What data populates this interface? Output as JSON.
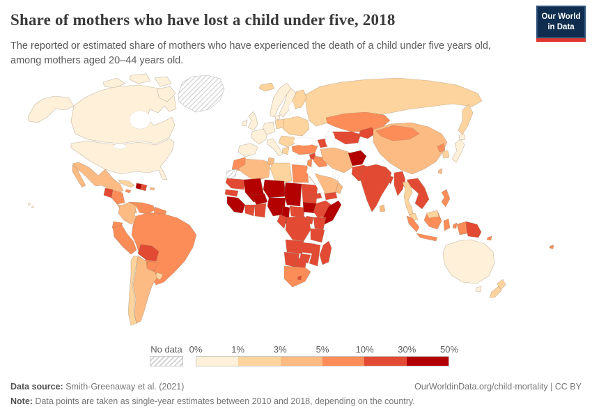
{
  "header": {
    "title": "Share of mothers who have lost a child under five, 2018",
    "subtitle": "The reported or estimated share of mothers who have experienced the death of a child under five years old, among mothers aged 20–44 years old."
  },
  "logo": {
    "line1": "Our World",
    "line2": "in Data",
    "bg": "#0F2D4E",
    "accent": "#E0362D"
  },
  "legend": {
    "no_data_label": "No data",
    "ticks": [
      "0%",
      "1%",
      "3%",
      "5%",
      "10%",
      "30%",
      "50%"
    ],
    "colors": [
      "#FEF0D9",
      "#FDD49E",
      "#FDBB84",
      "#FC8D59",
      "#E34A33",
      "#B30000"
    ]
  },
  "footer": {
    "source_label": "Data source:",
    "source_text": " Smith-Greenaway et al. (2021)",
    "link": "OurWorldinData.org/child-mortality | CC BY",
    "note_label": "Note:",
    "note_text": " Data points are taken as single-year estimates between 2010 and 2018, depending on the country."
  },
  "chart_data": {
    "type": "choropleth",
    "title": "Share of mothers who have lost a child under five",
    "year": "2018",
    "unit": "%",
    "scale": {
      "type": "threshold",
      "tick_values": [
        0,
        1,
        3,
        5,
        10,
        30,
        50
      ],
      "colors": [
        "#FEF0D9",
        "#FDD49E",
        "#FDBB84",
        "#FC8D59",
        "#E34A33",
        "#B30000"
      ],
      "no_data": "hatched"
    },
    "bucket_ranges": [
      "0-1%",
      "1-3%",
      "3-5%",
      "5-10%",
      "10-30%",
      "30-50%"
    ],
    "regions": [
      {
        "id": "canada",
        "name": "Canada",
        "bucket": 0
      },
      {
        "id": "usa",
        "name": "United States",
        "bucket": 0
      },
      {
        "id": "greenland",
        "name": "Greenland",
        "bucket": "no-data"
      },
      {
        "id": "mexico",
        "name": "Mexico",
        "bucket": 2
      },
      {
        "id": "guatemala",
        "name": "Guatemala",
        "bucket": 4
      },
      {
        "id": "honduras-nicaragua",
        "name": "Honduras & Nicaragua",
        "bucket": 3
      },
      {
        "id": "costa-rica-panama",
        "name": "Costa Rica & Panama",
        "bucket": 2
      },
      {
        "id": "cuba",
        "name": "Cuba",
        "bucket": 1
      },
      {
        "id": "jamaica",
        "name": "Jamaica",
        "bucket": 3
      },
      {
        "id": "haiti",
        "name": "Haiti",
        "bucket": 5
      },
      {
        "id": "dominican-republic",
        "name": "Dominican Republic",
        "bucket": 4
      },
      {
        "id": "puerto-rico",
        "name": "Puerto Rico",
        "bucket": 2
      },
      {
        "id": "colombia",
        "name": "Colombia",
        "bucket": 2
      },
      {
        "id": "venezuela",
        "name": "Venezuela",
        "bucket": 3
      },
      {
        "id": "guyanas",
        "name": "Guyana, Suriname & French Guiana",
        "bucket": 3
      },
      {
        "id": "ecuador",
        "name": "Ecuador",
        "bucket": 3
      },
      {
        "id": "peru",
        "name": "Peru",
        "bucket": 3
      },
      {
        "id": "brazil",
        "name": "Brazil",
        "bucket": 3
      },
      {
        "id": "bolivia",
        "name": "Bolivia",
        "bucket": 4
      },
      {
        "id": "paraguay",
        "name": "Paraguay",
        "bucket": 3
      },
      {
        "id": "uruguay",
        "name": "Uruguay",
        "bucket": 1
      },
      {
        "id": "argentina",
        "name": "Argentina",
        "bucket": 2
      },
      {
        "id": "chile",
        "name": "Chile",
        "bucket": 1
      },
      {
        "id": "iceland",
        "name": "Iceland",
        "bucket": 1
      },
      {
        "id": "norway",
        "name": "Norway",
        "bucket": 0
      },
      {
        "id": "sweden",
        "name": "Sweden",
        "bucket": 0
      },
      {
        "id": "finland",
        "name": "Finland",
        "bucket": 1
      },
      {
        "id": "denmark",
        "name": "Denmark",
        "bucket": 0
      },
      {
        "id": "uk",
        "name": "United Kingdom",
        "bucket": 0
      },
      {
        "id": "ireland",
        "name": "Ireland",
        "bucket": 0
      },
      {
        "id": "france",
        "name": "France",
        "bucket": 0
      },
      {
        "id": "iberia",
        "name": "Spain & Portugal",
        "bucket": 0
      },
      {
        "id": "germany",
        "name": "Germany",
        "bucket": 0
      },
      {
        "id": "italy",
        "name": "Italy",
        "bucket": 0
      },
      {
        "id": "poland",
        "name": "Poland",
        "bucket": 1
      },
      {
        "id": "east-europe",
        "name": "Eastern Europe",
        "bucket": 1
      },
      {
        "id": "balkans",
        "name": "Balkans & Romania",
        "bucket": 1
      },
      {
        "id": "greece",
        "name": "Greece",
        "bucket": 1
      },
      {
        "id": "russia",
        "name": "Russia",
        "bucket": 1
      },
      {
        "id": "turkey",
        "name": "Turkey",
        "bucket": 3
      },
      {
        "id": "caucasus",
        "name": "Caucasus",
        "bucket": 4
      },
      {
        "id": "syria",
        "name": "Syria",
        "bucket": 4
      },
      {
        "id": "iraq",
        "name": "Iraq",
        "bucket": 3
      },
      {
        "id": "jordan-israel",
        "name": "Jordan & Israel",
        "bucket": 3
      },
      {
        "id": "iran",
        "name": "Iran",
        "bucket": 2
      },
      {
        "id": "afghanistan",
        "name": "Afghanistan",
        "bucket": 5
      },
      {
        "id": "pakistan",
        "name": "Pakistan",
        "bucket": 4
      },
      {
        "id": "saudi-arabia",
        "name": "Saudi Arabia",
        "bucket": 2
      },
      {
        "id": "yemen",
        "name": "Yemen",
        "bucket": 4
      },
      {
        "id": "oman",
        "name": "Oman & UAE",
        "bucket": 2
      },
      {
        "id": "kazakhstan",
        "name": "Kazakhstan",
        "bucket": 3
      },
      {
        "id": "uzbekistan-turkmenistan",
        "name": "Uzbekistan & Turkmenistan",
        "bucket": 4
      },
      {
        "id": "kyrgyzstan-tajikistan",
        "name": "Kyrgyzstan & Tajikistan",
        "bucket": 4
      },
      {
        "id": "china",
        "name": "China",
        "bucket": 2
      },
      {
        "id": "mongolia",
        "name": "Mongolia",
        "bucket": 3
      },
      {
        "id": "north-korea",
        "name": "North Korea",
        "bucket": 3
      },
      {
        "id": "south-korea",
        "name": "South Korea",
        "bucket": 1
      },
      {
        "id": "japan",
        "name": "Japan",
        "bucket": 0
      },
      {
        "id": "taiwan",
        "name": "Taiwan",
        "bucket": 2
      },
      {
        "id": "india",
        "name": "India",
        "bucket": 4
      },
      {
        "id": "bangladesh",
        "name": "Bangladesh",
        "bucket": 4
      },
      {
        "id": "sri-lanka",
        "name": "Sri Lanka",
        "bucket": 2
      },
      {
        "id": "myanmar",
        "name": "Myanmar",
        "bucket": 4
      },
      {
        "id": "thailand",
        "name": "Thailand",
        "bucket": 1
      },
      {
        "id": "laos-vietnam-cambodia",
        "name": "Laos, Vietnam & Cambodia",
        "bucket": 4
      },
      {
        "id": "malaysia",
        "name": "Malaysia",
        "bucket": 1
      },
      {
        "id": "sumatra",
        "name": "Indonesia (Sumatra)",
        "bucket": 3
      },
      {
        "id": "java",
        "name": "Indonesia (Java)",
        "bucket": 3
      },
      {
        "id": "borneo",
        "name": "Indonesia (Kalimantan)",
        "bucket": 3
      },
      {
        "id": "sulawesi",
        "name": "Indonesia (Sulawesi)",
        "bucket": 3
      },
      {
        "id": "moluccas",
        "name": "Indonesia (Moluccas)",
        "bucket": 3
      },
      {
        "id": "philippines",
        "name": "Philippines",
        "bucket": 3
      },
      {
        "id": "west-papua",
        "name": "Indonesia (Papua)",
        "bucket": 3
      },
      {
        "id": "papua-new-guinea",
        "name": "Papua New Guinea",
        "bucket": 4
      },
      {
        "id": "solomon-islands",
        "name": "Solomon Islands",
        "bucket": 3
      },
      {
        "id": "fiji",
        "name": "Fiji",
        "bucket": 3
      },
      {
        "id": "australia",
        "name": "Australia",
        "bucket": 0
      },
      {
        "id": "new-zealand",
        "name": "New Zealand",
        "bucket": 1
      },
      {
        "id": "morocco",
        "name": "Morocco",
        "bucket": 3
      },
      {
        "id": "western-sahara",
        "name": "Western Sahara",
        "bucket": "no-data"
      },
      {
        "id": "algeria",
        "name": "Algeria",
        "bucket": 2
      },
      {
        "id": "tunisia",
        "name": "Tunisia",
        "bucket": 2
      },
      {
        "id": "libya",
        "name": "Libya",
        "bucket": 1
      },
      {
        "id": "egypt",
        "name": "Egypt",
        "bucket": 3
      },
      {
        "id": "mauritania",
        "name": "Mauritania",
        "bucket": 4
      },
      {
        "id": "senegal",
        "name": "Senegal",
        "bucket": 4
      },
      {
        "id": "mali",
        "name": "Mali",
        "bucket": 5
      },
      {
        "id": "guinea-group",
        "name": "Guinea, Sierra Leone & Liberia",
        "bucket": 5
      },
      {
        "id": "burkina-faso",
        "name": "Burkina Faso",
        "bucket": 5
      },
      {
        "id": "ivory-coast",
        "name": "Côte d'Ivoire",
        "bucket": 4
      },
      {
        "id": "ghana",
        "name": "Ghana, Togo & Benin",
        "bucket": 4
      },
      {
        "id": "niger",
        "name": "Niger",
        "bucket": 5
      },
      {
        "id": "nigeria",
        "name": "Nigeria",
        "bucket": 5
      },
      {
        "id": "chad",
        "name": "Chad",
        "bucket": 5
      },
      {
        "id": "cameroon",
        "name": "Cameroon",
        "bucket": 5
      },
      {
        "id": "central-african-republic",
        "name": "Central African Republic",
        "bucket": 4
      },
      {
        "id": "sudan",
        "name": "Sudan",
        "bucket": 4
      },
      {
        "id": "south-sudan",
        "name": "South Sudan",
        "bucket": 5
      },
      {
        "id": "eritrea",
        "name": "Eritrea",
        "bucket": 4
      },
      {
        "id": "ethiopia",
        "name": "Ethiopia",
        "bucket": 4
      },
      {
        "id": "somalia",
        "name": "Somalia",
        "bucket": 5
      },
      {
        "id": "kenya",
        "name": "Kenya",
        "bucket": 4
      },
      {
        "id": "uganda",
        "name": "Uganda",
        "bucket": 4
      },
      {
        "id": "drc",
        "name": "Democratic Republic of Congo",
        "bucket": 4
      },
      {
        "id": "congo-gabon",
        "name": "Congo & Gabon",
        "bucket": 4
      },
      {
        "id": "tanzania",
        "name": "Tanzania",
        "bucket": 4
      },
      {
        "id": "angola",
        "name": "Angola",
        "bucket": 4
      },
      {
        "id": "zambia",
        "name": "Zambia",
        "bucket": 4
      },
      {
        "id": "malawi-mozambique",
        "name": "Malawi & Mozambique",
        "bucket": 4
      },
      {
        "id": "zimbabwe",
        "name": "Zimbabwe",
        "bucket": 4
      },
      {
        "id": "namibia",
        "name": "Namibia",
        "bucket": 4
      },
      {
        "id": "botswana",
        "name": "Botswana",
        "bucket": 4
      },
      {
        "id": "south-africa",
        "name": "South Africa",
        "bucket": 3
      },
      {
        "id": "lesotho",
        "name": "Lesotho",
        "bucket": 4
      },
      {
        "id": "madagascar",
        "name": "Madagascar",
        "bucket": 4
      }
    ]
  }
}
